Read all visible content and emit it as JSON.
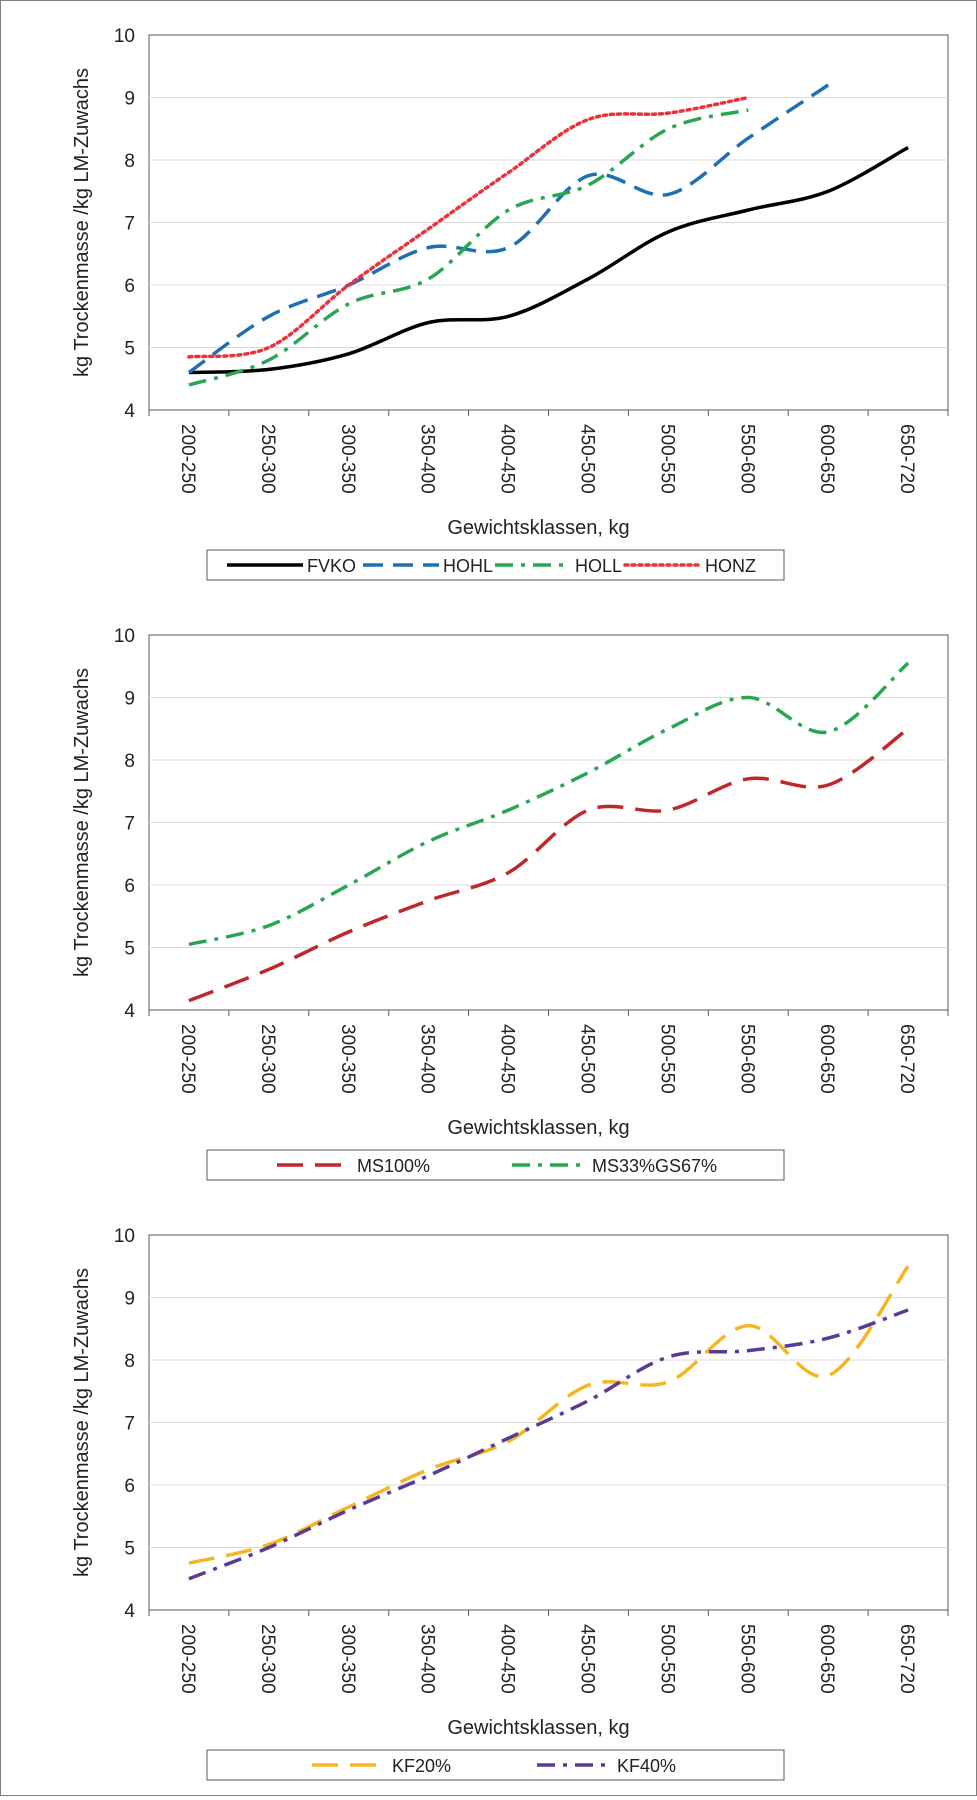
{
  "chart_data": [
    {
      "type": "line",
      "ylabel": "kg Trockenmasse /kg LM-Zuwachs",
      "xlabel": "Gewichtsklassen, kg",
      "ylim": [
        4,
        10
      ],
      "yticks": [
        "4",
        "5",
        "6",
        "7",
        "8",
        "9",
        "10"
      ],
      "categories": [
        "200-250",
        "250-300",
        "300-350",
        "350-400",
        "400-450",
        "450-500",
        "500-550",
        "550-600",
        "600-650",
        "650-720"
      ],
      "grid": true,
      "legend": "bottom",
      "series": [
        {
          "name": "FVKO",
          "color": "#000000",
          "dash": "solid",
          "values": [
            4.6,
            4.65,
            4.9,
            5.4,
            5.5,
            6.1,
            6.85,
            7.2,
            7.5,
            8.2
          ]
        },
        {
          "name": "HOHL",
          "color": "#1f6fb5",
          "dash": "dash",
          "values": [
            4.6,
            5.5,
            6.0,
            6.6,
            6.6,
            7.75,
            7.45,
            8.35,
            9.2,
            null
          ]
        },
        {
          "name": "HOLL",
          "color": "#2aa653",
          "dash": "dashdot",
          "values": [
            4.4,
            4.8,
            5.7,
            6.1,
            7.2,
            7.6,
            8.5,
            8.8,
            null,
            null
          ]
        },
        {
          "name": "HONZ",
          "color": "#e8333a",
          "dash": "dot",
          "values": [
            4.85,
            5.0,
            6.0,
            6.9,
            7.8,
            8.65,
            8.75,
            9.0,
            null,
            null
          ]
        }
      ]
    },
    {
      "type": "line",
      "ylabel": "kg Trockenmasse /kg LM-Zuwachs",
      "xlabel": "Gewichtsklassen, kg",
      "ylim": [
        4,
        10
      ],
      "yticks": [
        "4",
        "5",
        "6",
        "7",
        "8",
        "9",
        "10"
      ],
      "categories": [
        "200-250",
        "250-300",
        "300-350",
        "350-400",
        "400-450",
        "450-500",
        "500-550",
        "550-600",
        "600-650",
        "650-720"
      ],
      "grid": true,
      "legend": "bottom",
      "series": [
        {
          "name": "MS100%",
          "color": "#c0272d",
          "dash": "longdash",
          "values": [
            4.15,
            4.65,
            5.25,
            5.75,
            6.2,
            7.2,
            7.2,
            7.7,
            7.6,
            8.5
          ]
        },
        {
          "name": "MS33%GS67%",
          "color": "#2aa653",
          "dash": "dashdot",
          "values": [
            5.05,
            5.35,
            6.0,
            6.7,
            7.2,
            7.8,
            8.5,
            9.0,
            8.45,
            9.55
          ]
        }
      ]
    },
    {
      "type": "line",
      "ylabel": "kg Trockenmasse /kg LM-Zuwachs",
      "xlabel": "Gewichtsklassen, kg",
      "ylim": [
        4,
        10
      ],
      "yticks": [
        "4",
        "5",
        "6",
        "7",
        "8",
        "9",
        "10"
      ],
      "categories": [
        "200-250",
        "250-300",
        "300-350",
        "350-400",
        "400-450",
        "450-500",
        "500-550",
        "550-600",
        "600-650",
        "650-720"
      ],
      "grid": true,
      "legend": "bottom",
      "series": [
        {
          "name": "KF20%",
          "color": "#f5b622",
          "dash": "longdash",
          "values": [
            4.75,
            5.05,
            5.65,
            6.25,
            6.7,
            7.6,
            7.65,
            8.55,
            7.75,
            9.5
          ]
        },
        {
          "name": "KF40%",
          "color": "#5b3a96",
          "dash": "dashdot",
          "values": [
            4.5,
            5.0,
            5.6,
            6.15,
            6.75,
            7.35,
            8.05,
            8.15,
            8.35,
            8.8
          ]
        }
      ]
    }
  ]
}
